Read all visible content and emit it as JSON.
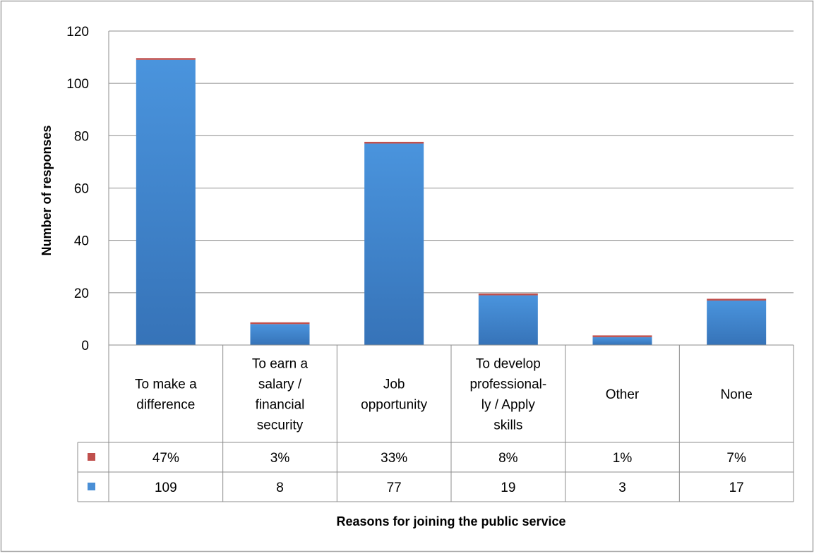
{
  "chart_data": {
    "type": "bar",
    "title": "",
    "xlabel": "Reasons for joining the public service",
    "ylabel": "Number of responses",
    "ylim": [
      0,
      120
    ],
    "yticks": [
      0,
      20,
      40,
      60,
      80,
      100,
      120
    ],
    "grid": true,
    "legend": "data-table-left",
    "categories": [
      [
        "To make a",
        "difference"
      ],
      [
        "To earn a",
        "salary /",
        "financial",
        "security"
      ],
      [
        "Job",
        "opportunity"
      ],
      [
        "To develop",
        "professional-",
        "ly / Apply",
        "skills"
      ],
      [
        "Other"
      ],
      [
        "None"
      ]
    ],
    "series": [
      {
        "color": "#c0504d",
        "values": [
          47,
          3,
          33,
          8,
          1,
          7
        ],
        "labels": [
          "47%",
          "3%",
          "33%",
          "8%",
          "1%",
          "7%"
        ]
      },
      {
        "color": "#4a8fd6",
        "values": [
          109,
          8,
          77,
          19,
          3,
          17
        ],
        "labels": [
          "109",
          "8",
          "77",
          "19",
          "3",
          "17"
        ]
      }
    ]
  }
}
